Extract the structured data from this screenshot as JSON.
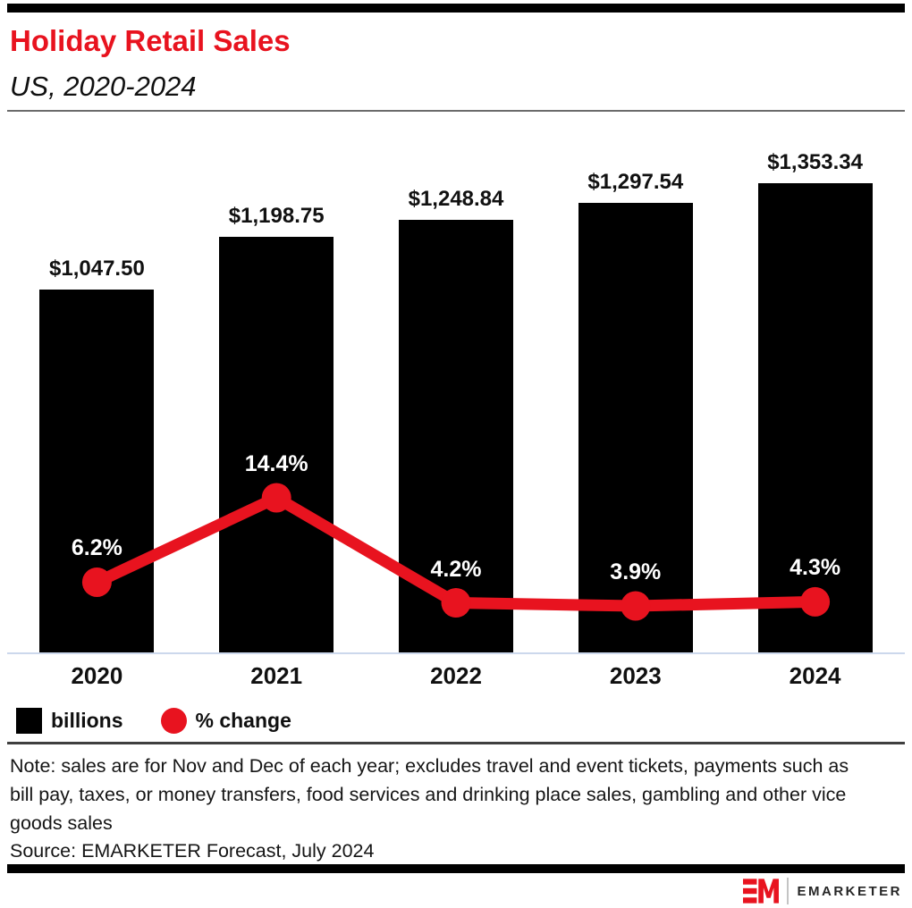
{
  "page": {
    "title": "Holiday Retail Sales",
    "subtitle": "US, 2020-2024",
    "note": "Note: sales are for Nov and Dec of each year; excludes travel and event tickets, payments such as bill pay, taxes, or money transfers, food services and drinking place sales, gambling and other vice goods sales",
    "source": "Source: EMARKETER Forecast, July 2024",
    "brand": "EMARKETER"
  },
  "legend": {
    "bars_label": "billions",
    "line_label": "% change"
  },
  "colors": {
    "brand_red": "#e8131f",
    "bar_black": "#000000",
    "axis_line": "#ccd8ec",
    "title_rule_gray": "#6b6b6b",
    "note_rule_dark": "#3f3f3f"
  },
  "chart_data": {
    "type": "bar",
    "combo": "bar+line",
    "title": "Holiday Retail Sales",
    "subtitle": "US, 2020-2024",
    "categories": [
      "2020",
      "2021",
      "2022",
      "2023",
      "2024"
    ],
    "series": [
      {
        "name": "billions",
        "type": "bar",
        "color": "#000000",
        "values": [
          1047.5,
          1198.75,
          1248.84,
          1297.54,
          1353.34
        ],
        "labels": [
          "$1,047.50",
          "$1,198.75",
          "$1,248.84",
          "$1,297.54",
          "$1,353.34"
        ]
      },
      {
        "name": "% change",
        "type": "line",
        "color": "#e8131f",
        "values": [
          6.2,
          14.4,
          4.2,
          3.9,
          4.3
        ],
        "labels": [
          "6.2%",
          "14.4%",
          "4.2%",
          "3.9%",
          "4.3%"
        ]
      }
    ],
    "xlabel": "",
    "ylabel": "",
    "grid": false,
    "legend_position": "bottom-left",
    "value_labels_shown": true
  }
}
